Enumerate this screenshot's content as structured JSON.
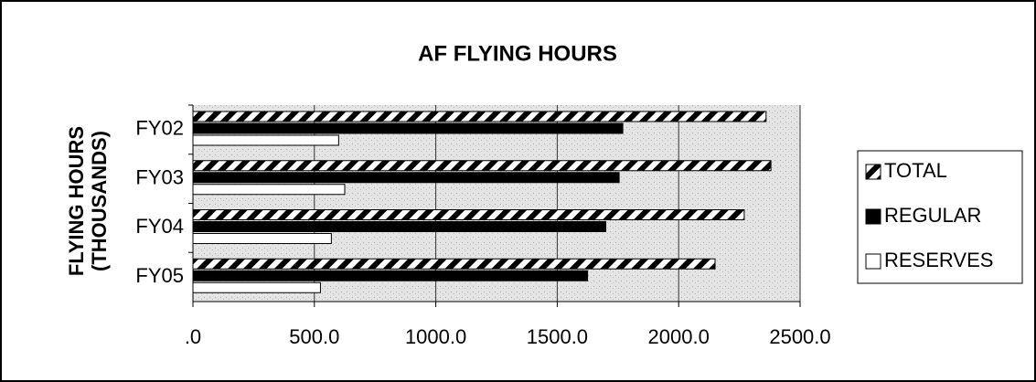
{
  "chart_data": {
    "type": "barh",
    "title": "AF FLYING HOURS",
    "y_label": [
      "FLYING HOURS",
      "(THOUSANDS)"
    ],
    "categories": [
      "FY02",
      "FY03",
      "FY04",
      "FY05"
    ],
    "series": [
      {
        "name": "TOTAL",
        "color": "#000000",
        "pattern": "diagonal",
        "values": [
          2360,
          2380,
          2270,
          2150
        ]
      },
      {
        "name": "REGULAR",
        "color": "#000000",
        "values": [
          1770,
          1755,
          1700,
          1625
        ]
      },
      {
        "name": "RESERVES",
        "color": "#ffffff",
        "values": [
          600,
          625,
          570,
          525
        ]
      }
    ],
    "xlim": [
      0,
      2500
    ],
    "xticks": [
      {
        "value": 0,
        "label": ".0"
      },
      {
        "value": 500,
        "label": "500.0"
      },
      {
        "value": 1000,
        "label": "1000.0"
      },
      {
        "value": 1500,
        "label": "1500.0"
      },
      {
        "value": 2000,
        "label": "2000.0"
      },
      {
        "value": 2500,
        "label": "2500.0"
      }
    ],
    "grid": true,
    "legend": "right"
  }
}
